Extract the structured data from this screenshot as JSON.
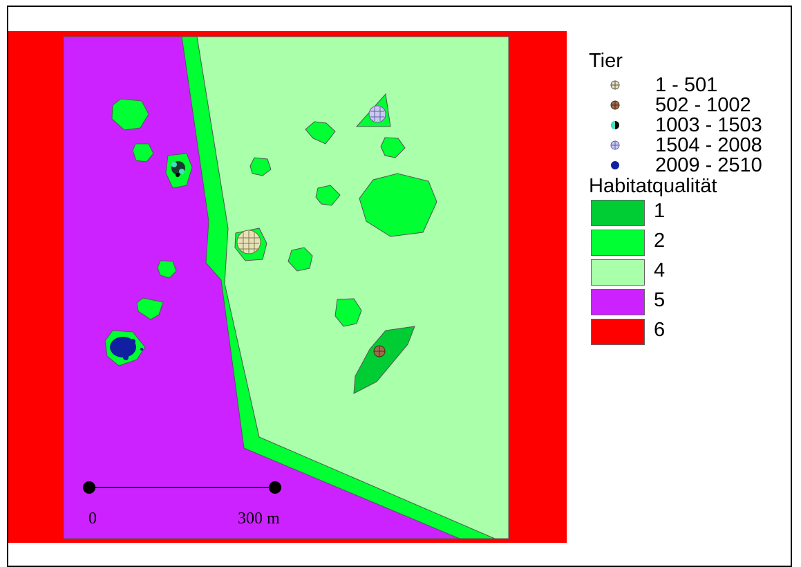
{
  "legend": {
    "tier_title": "Tier",
    "tier_classes": [
      {
        "label": "1 - 501",
        "symbol": "crosshair-circle-icon",
        "color": "#e8e0b8"
      },
      {
        "label": "502 - 1002",
        "symbol": "crosshair-circle-icon",
        "color": "#a06c4e"
      },
      {
        "label": "1003 - 1503",
        "symbol": "half-circle-icon",
        "color": "#40e0c0"
      },
      {
        "label": "1504 - 2008",
        "symbol": "crosshair-circle-icon",
        "color": "#c8c8f0"
      },
      {
        "label": "2009 - 2510",
        "symbol": "filled-circle-icon",
        "color": "#1020a0"
      }
    ],
    "habitat_title": "Habitatqualität",
    "habitat_classes": [
      {
        "label": "1",
        "color": "#00cc33"
      },
      {
        "label": "2",
        "color": "#00ff33"
      },
      {
        "label": "4",
        "color": "#aaffaa"
      },
      {
        "label": "5",
        "color": "#cc22ff"
      },
      {
        "label": "6",
        "color": "#ff0000"
      }
    ]
  },
  "scale_bar": {
    "start_label": "0",
    "end_label": "300 m"
  }
}
